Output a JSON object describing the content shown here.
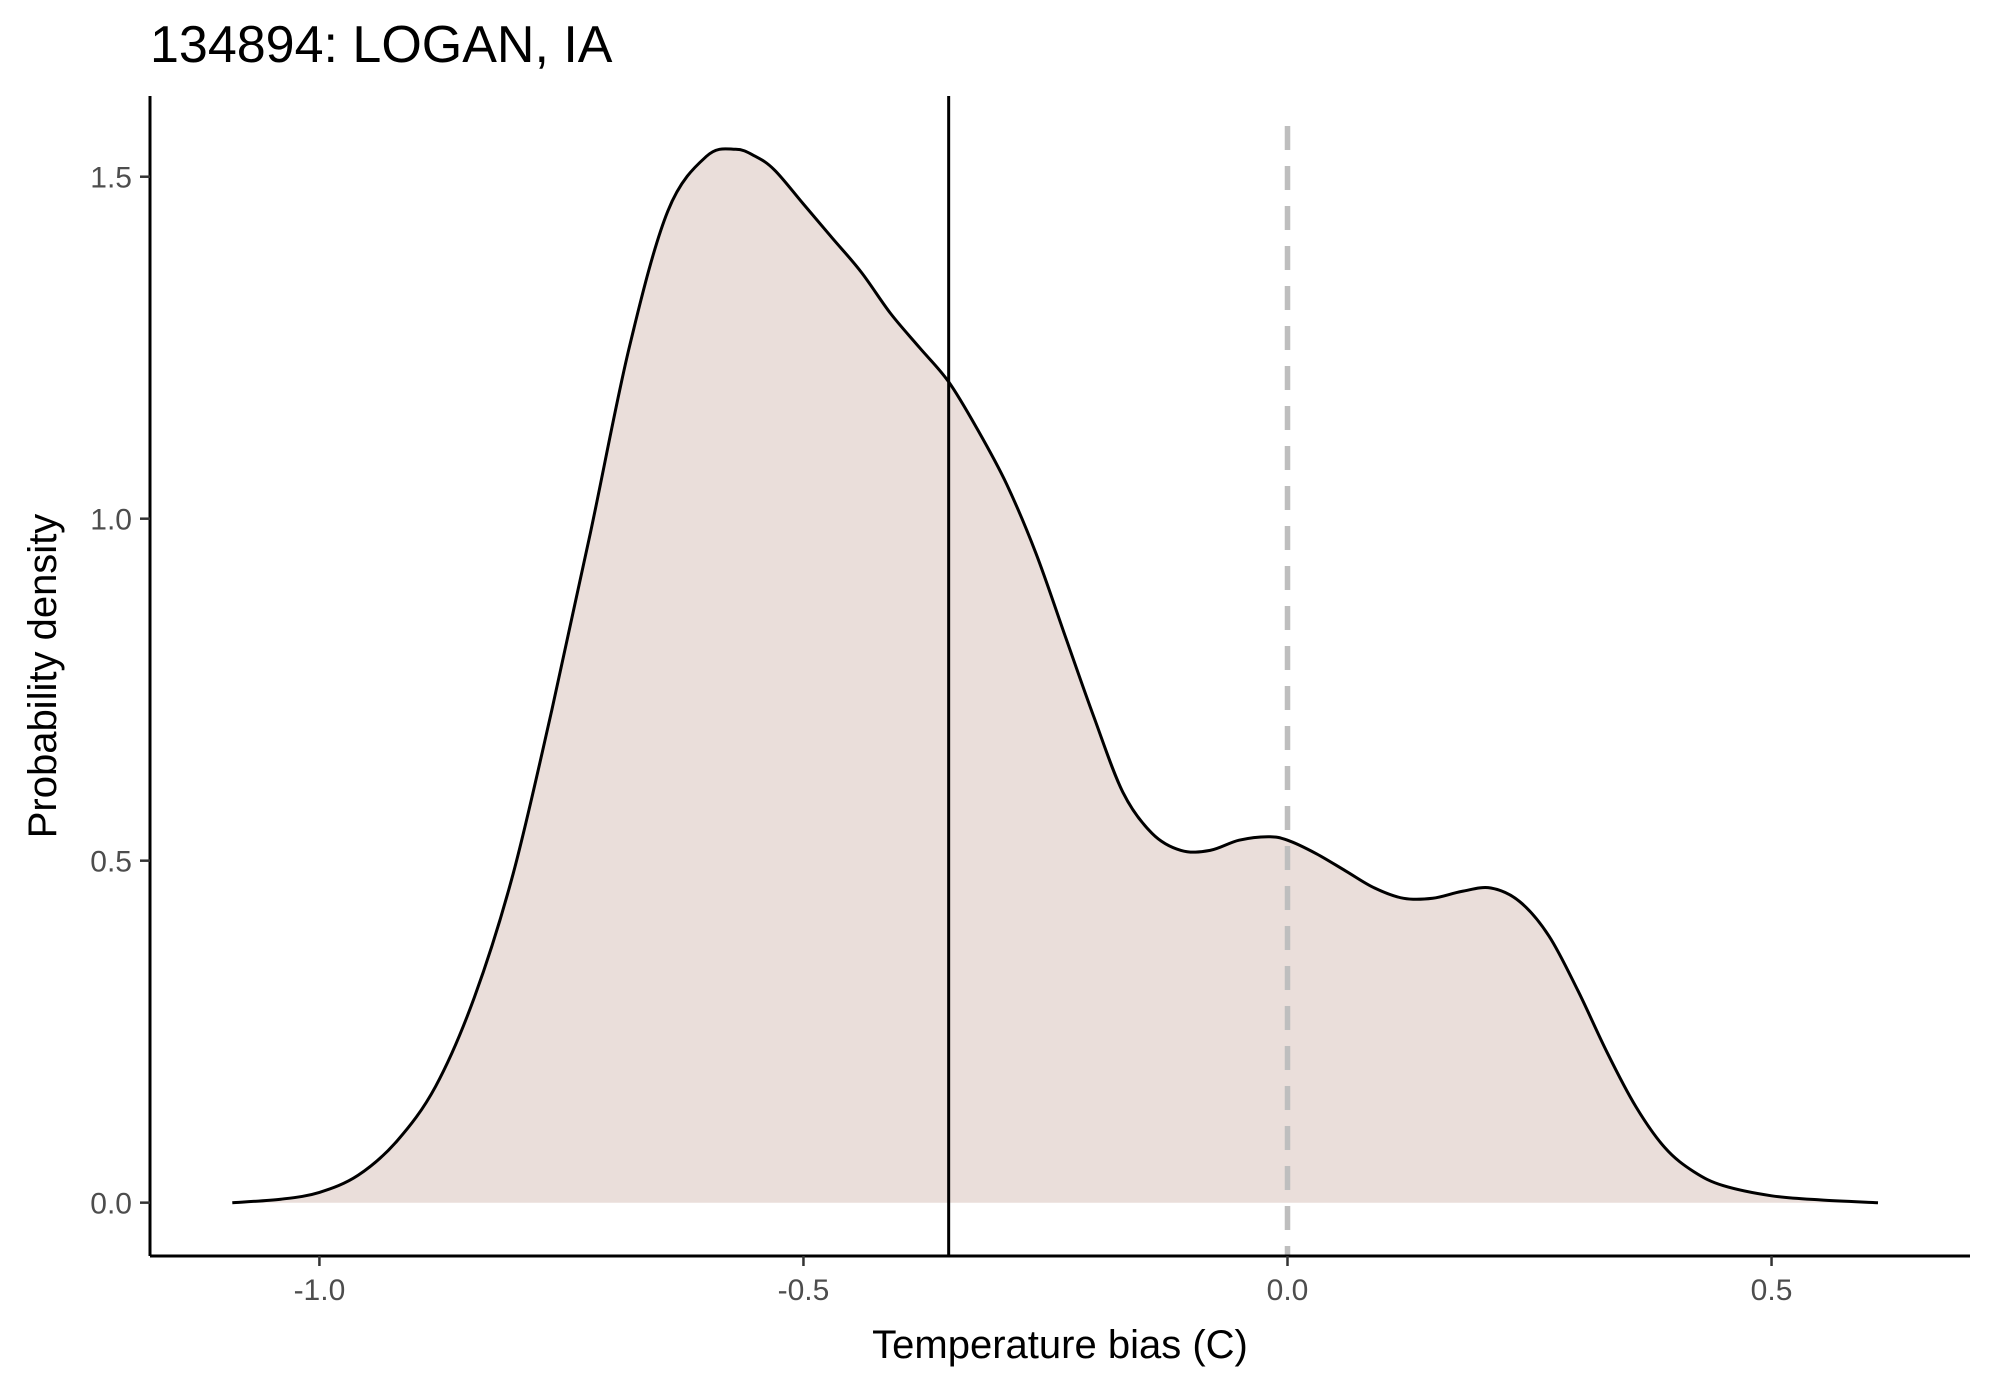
{
  "chart_data": {
    "type": "area",
    "title": "134894: LOGAN, IA",
    "xlabel": "Temperature bias (C)",
    "ylabel": "Probability density",
    "xlim": [
      -1.175,
      0.705
    ],
    "ylim": [
      -0.078,
      1.618
    ],
    "x_ticks": [
      -1.0,
      -0.5,
      0.0,
      0.5
    ],
    "x_tick_labels": [
      "-1.0",
      "-0.5",
      "0.0",
      "0.5"
    ],
    "y_ticks": [
      0.0,
      0.5,
      1.0,
      1.5
    ],
    "y_tick_labels": [
      "0.0",
      "0.5",
      "1.0",
      "1.5"
    ],
    "grid": false,
    "fill_color": "#eadeda",
    "line_color": "#000000",
    "reference_lines": [
      {
        "x": -0.35,
        "style": "solid",
        "color": "#000000"
      },
      {
        "x": 0.0,
        "style": "dashed",
        "color": "#bebebe"
      }
    ],
    "series": [
      {
        "x": [
          -1.09,
          -1.04,
          -1.0,
          -0.96,
          -0.92,
          -0.88,
          -0.84,
          -0.8,
          -0.76,
          -0.72,
          -0.68,
          -0.64,
          -0.6,
          -0.57,
          -0.55,
          -0.53,
          -0.5,
          -0.47,
          -0.44,
          -0.41,
          -0.38,
          -0.35,
          -0.32,
          -0.29,
          -0.26,
          -0.23,
          -0.2,
          -0.17,
          -0.14,
          -0.11,
          -0.08,
          -0.05,
          -0.02,
          0.0,
          0.03,
          0.06,
          0.09,
          0.12,
          0.15,
          0.18,
          0.21,
          0.24,
          0.27,
          0.3,
          0.33,
          0.36,
          0.39,
          0.42,
          0.45,
          0.5,
          0.55,
          0.61
        ],
        "y": [
          0.0,
          0.005,
          0.015,
          0.04,
          0.09,
          0.17,
          0.3,
          0.48,
          0.72,
          0.98,
          1.25,
          1.45,
          1.53,
          1.54,
          1.53,
          1.51,
          1.46,
          1.41,
          1.36,
          1.3,
          1.25,
          1.2,
          1.13,
          1.05,
          0.95,
          0.83,
          0.71,
          0.6,
          0.54,
          0.515,
          0.515,
          0.53,
          0.535,
          0.53,
          0.51,
          0.485,
          0.46,
          0.445,
          0.445,
          0.455,
          0.46,
          0.44,
          0.39,
          0.31,
          0.22,
          0.14,
          0.08,
          0.045,
          0.025,
          0.01,
          0.004,
          0.0
        ]
      }
    ]
  }
}
